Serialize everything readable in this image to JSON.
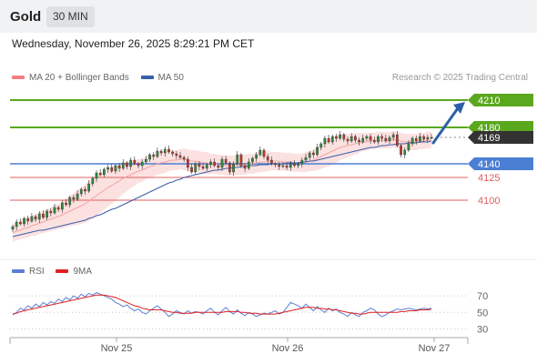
{
  "header": {
    "symbol": "Gold",
    "timeframe": "30 MIN"
  },
  "datetime": "Wednesday, November 26, 2025 8:29:21 PM CET",
  "legend": [
    {
      "label": "MA 20 + Bollinger Bands",
      "color": "#f08080"
    },
    {
      "label": "MA 50",
      "color": "#3a5ea8"
    }
  ],
  "credit": "Research © 2025 Trading Central",
  "rsi_legend": [
    {
      "label": "RSI",
      "color": "#5b7fd6"
    },
    {
      "label": "9MA",
      "color": "#e02020"
    }
  ],
  "colors": {
    "up_candle": "#2e8b3a",
    "down_candle": "#c0392b",
    "bollinger_fill": "#fcdcdc",
    "ma20": "#f4a3a3",
    "ma50": "#3a5ea8",
    "resistance": "#5aa81e",
    "pivot": "#4a7fd4",
    "support": "#e06060",
    "arrow": "#2f5fa8",
    "current": "#333333"
  },
  "chart_data": [
    {
      "type": "candlestick",
      "title": "Gold",
      "timeframe": "30 MIN",
      "ylim": [
        4058,
        4221
      ],
      "x_ticks": [
        "Nov 25",
        "Nov 26",
        "Nov 27"
      ],
      "levels": [
        {
          "value": 4210,
          "label": "4210",
          "kind": "resistance"
        },
        {
          "value": 4180,
          "label": "4180",
          "kind": "resistance"
        },
        {
          "value": 4169,
          "label": "4169",
          "kind": "current"
        },
        {
          "value": 4140,
          "label": "4140",
          "kind": "pivot"
        },
        {
          "value": 4125,
          "label": "4125",
          "kind": "support"
        },
        {
          "value": 4100,
          "label": "4100",
          "kind": "support"
        }
      ],
      "close": [
        4071,
        4076,
        4074,
        4080,
        4077,
        4082,
        4079,
        4085,
        4081,
        4088,
        4086,
        4092,
        4090,
        4097,
        4095,
        4103,
        4101,
        4107,
        4112,
        4110,
        4118,
        4124,
        4130,
        4128,
        4134,
        4136,
        4132,
        4138,
        4135,
        4141,
        4137,
        4144,
        4140,
        4138,
        4142,
        4145,
        4150,
        4148,
        4154,
        4152,
        4156,
        4153,
        4151,
        4149,
        4147,
        4145,
        4136,
        4131,
        4140,
        4137,
        4135,
        4139,
        4142,
        4138,
        4136,
        4145,
        4141,
        4131,
        4140,
        4150,
        4138,
        4135,
        4142,
        4146,
        4150,
        4155,
        4148,
        4144,
        4140,
        4139,
        4137,
        4138,
        4136,
        4140,
        4138,
        4140,
        4144,
        4147,
        4152,
        4150,
        4158,
        4162,
        4168,
        4164,
        4170,
        4168,
        4172,
        4167,
        4165,
        4170,
        4166,
        4164,
        4168,
        4170,
        4166,
        4164,
        4170,
        4168,
        4165,
        4169,
        4172,
        4160,
        4150,
        4155,
        4162,
        4168,
        4165,
        4170,
        4167,
        4169,
        4169
      ],
      "ma20": [
        4064,
        4066,
        4067,
        4069,
        4070,
        4072,
        4073,
        4075,
        4076,
        4078,
        4079,
        4081,
        4082,
        4084,
        4086,
        4088,
        4090,
        4092,
        4094,
        4096,
        4099,
        4102,
        4105,
        4108,
        4111,
        4114,
        4116,
        4119,
        4121,
        4124,
        4126,
        4128,
        4130,
        4132,
        4133,
        4135,
        4137,
        4138,
        4140,
        4141,
        4142,
        4143,
        4144,
        4144,
        4145,
        4145,
        4144,
        4143,
        4143,
        4142,
        4141,
        4141,
        4140,
        4140,
        4139,
        4139,
        4138,
        4138,
        4138,
        4139,
        4139,
        4139,
        4140,
        4140,
        4141,
        4142,
        4142,
        4143,
        4143,
        4143,
        4143,
        4142,
        4142,
        4142,
        4141,
        4141,
        4141,
        4142,
        4143,
        4144,
        4146,
        4148,
        4150,
        4152,
        4154,
        4156,
        4158,
        4159,
        4160,
        4161,
        4162,
        4163,
        4164,
        4164,
        4165,
        4165,
        4166,
        4166,
        4166,
        4166,
        4167,
        4166,
        4165,
        4164,
        4164,
        4164,
        4164,
        4165,
        4165,
        4166,
        4166
      ],
      "ma50": [
        4060,
        4061,
        4062,
        4063,
        4064,
        4065,
        4066,
        4067,
        4067,
        4068,
        4069,
        4070,
        4071,
        4072,
        4073,
        4074,
        4075,
        4076,
        4077,
        4078,
        4080,
        4081,
        4083,
        4084,
        4086,
        4088,
        4090,
        4091,
        4093,
        4095,
        4097,
        4099,
        4101,
        4103,
        4105,
        4107,
        4109,
        4111,
        4113,
        4115,
        4117,
        4119,
        4120,
        4122,
        4123,
        4125,
        4126,
        4127,
        4128,
        4129,
        4130,
        4131,
        4132,
        4133,
        4133,
        4134,
        4135,
        4135,
        4136,
        4136,
        4137,
        4137,
        4138,
        4138,
        4138,
        4139,
        4139,
        4139,
        4140,
        4140,
        4140,
        4140,
        4141,
        4141,
        4141,
        4141,
        4142,
        4142,
        4143,
        4143,
        4144,
        4145,
        4146,
        4147,
        4148,
        4149,
        4150,
        4151,
        4152,
        4153,
        4154,
        4155,
        4156,
        4157,
        4158,
        4158,
        4159,
        4160,
        4160,
        4161,
        4161,
        4162,
        4162,
        4162,
        4163,
        4163,
        4163,
        4164,
        4164,
        4164,
        4165
      ],
      "band_width": [
        10,
        10,
        10,
        11,
        11,
        11,
        12,
        12,
        12,
        13,
        13,
        14,
        14,
        15,
        16,
        17,
        18,
        19,
        20,
        21,
        22,
        22,
        22,
        22,
        21,
        21,
        20,
        19,
        18,
        17,
        16,
        15,
        14,
        13,
        13,
        12,
        12,
        12,
        12,
        12,
        12,
        11,
        11,
        11,
        11,
        12,
        12,
        12,
        12,
        12,
        12,
        12,
        11,
        11,
        11,
        11,
        11,
        11,
        11,
        11,
        11,
        11,
        11,
        11,
        11,
        11,
        11,
        11,
        10,
        10,
        10,
        10,
        10,
        10,
        10,
        10,
        10,
        11,
        11,
        12,
        13,
        14,
        14,
        15,
        15,
        15,
        14,
        14,
        13,
        12,
        12,
        11,
        10,
        10,
        9,
        9,
        9,
        9,
        9,
        9,
        9,
        9,
        9,
        9,
        9,
        9,
        9,
        9,
        9,
        9,
        9
      ],
      "forecast": {
        "from": 4169,
        "to": 4210
      }
    },
    {
      "type": "line",
      "title": "RSI",
      "yticks": [
        30,
        50,
        70
      ],
      "ylim": [
        25,
        80
      ],
      "series": [
        {
          "name": "RSI",
          "values": [
            47,
            50,
            55,
            53,
            58,
            55,
            60,
            57,
            62,
            59,
            63,
            61,
            66,
            63,
            68,
            65,
            70,
            67,
            72,
            69,
            73,
            71,
            74,
            72,
            70,
            68,
            66,
            62,
            60,
            57,
            59,
            55,
            52,
            54,
            50,
            48,
            52,
            55,
            58,
            54,
            50,
            45,
            48,
            52,
            50,
            48,
            52,
            49,
            51,
            50,
            48,
            52,
            55,
            50,
            47,
            52,
            56,
            51,
            48,
            53,
            49,
            46,
            50,
            48,
            45,
            47,
            49,
            48,
            50,
            52,
            48,
            50,
            56,
            62,
            60,
            58,
            55,
            60,
            56,
            52,
            57,
            53,
            50,
            55,
            52,
            54,
            50,
            48,
            45,
            50,
            47,
            45,
            50,
            52,
            55,
            53,
            48,
            45,
            47,
            50,
            52,
            54,
            53,
            54,
            55,
            54,
            53,
            54,
            55,
            54,
            55
          ]
        },
        {
          "name": "9MA",
          "values": [
            48,
            49,
            51,
            52,
            53,
            54,
            55,
            56,
            57,
            58,
            59,
            60,
            61,
            62,
            63,
            64,
            65,
            66,
            67,
            68,
            69,
            70,
            71,
            71,
            71,
            70,
            69,
            68,
            66,
            64,
            62,
            60,
            58,
            57,
            55,
            54,
            53,
            53,
            53,
            53,
            52,
            51,
            50,
            50,
            49,
            49,
            49,
            49,
            50,
            50,
            50,
            50,
            50,
            50,
            50,
            50,
            51,
            51,
            51,
            51,
            50,
            50,
            49,
            49,
            49,
            48,
            48,
            48,
            48,
            48,
            49,
            50,
            51,
            52,
            53,
            54,
            55,
            56,
            56,
            56,
            55,
            55,
            54,
            54,
            53,
            53,
            52,
            51,
            50,
            49,
            49,
            48,
            48,
            49,
            50,
            50,
            50,
            50,
            50,
            50,
            50,
            50,
            51,
            51,
            52,
            52,
            52,
            53,
            53,
            53,
            54
          ]
        }
      ]
    }
  ]
}
